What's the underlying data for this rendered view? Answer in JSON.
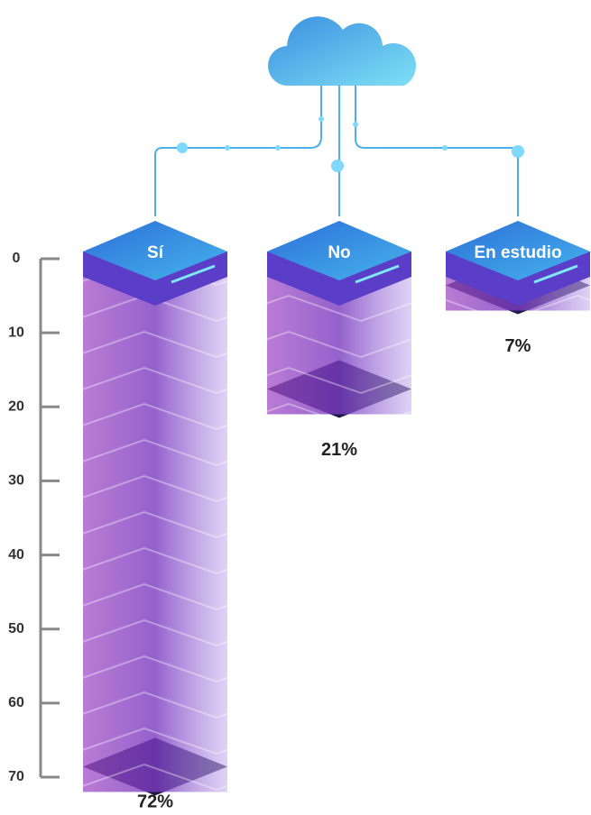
{
  "chart_data": {
    "type": "bar",
    "categories": [
      "Sí",
      "No",
      "En estudio"
    ],
    "values": [
      72,
      21,
      7
    ],
    "value_labels": [
      "72%",
      "21%",
      "7%"
    ],
    "ylim": [
      0,
      70
    ],
    "yticks": [
      0,
      10,
      20,
      30,
      40,
      50,
      60,
      70
    ],
    "y_inverted": true,
    "color": "#8a3fc0"
  }
}
